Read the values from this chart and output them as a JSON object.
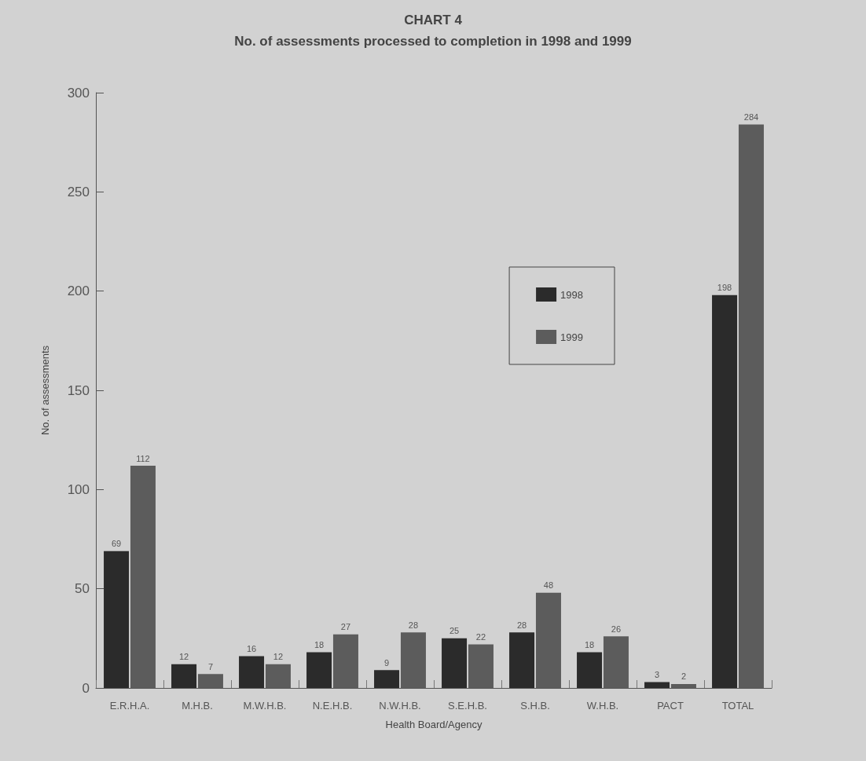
{
  "chart_data": {
    "type": "bar",
    "title": "CHART 4",
    "subtitle": "No. of assessments processed to completion in 1998 and 1999",
    "xlabel": "Health Board/Agency",
    "ylabel": "No. of assessments",
    "categories": [
      "E.R.H.A.",
      "M.H.B.",
      "M.W.H.B.",
      "N.E.H.B.",
      "N.W.H.B.",
      "S.E.H.B.",
      "S.H.B.",
      "W.H.B.",
      "PACT",
      "TOTAL"
    ],
    "series": [
      {
        "name": "1998",
        "color": "#2b2b2b",
        "values": [
          69,
          12,
          16,
          18,
          9,
          25,
          28,
          18,
          3,
          198
        ]
      },
      {
        "name": "1999",
        "color": "#5c5c5c",
        "values": [
          112,
          7,
          12,
          27,
          28,
          22,
          48,
          26,
          2,
          284
        ]
      }
    ],
    "ylim": [
      0,
      300
    ],
    "yticks": [
      0,
      50,
      100,
      150,
      200,
      250,
      300
    ],
    "grid": false,
    "legend": "right",
    "data_labels": true
  }
}
